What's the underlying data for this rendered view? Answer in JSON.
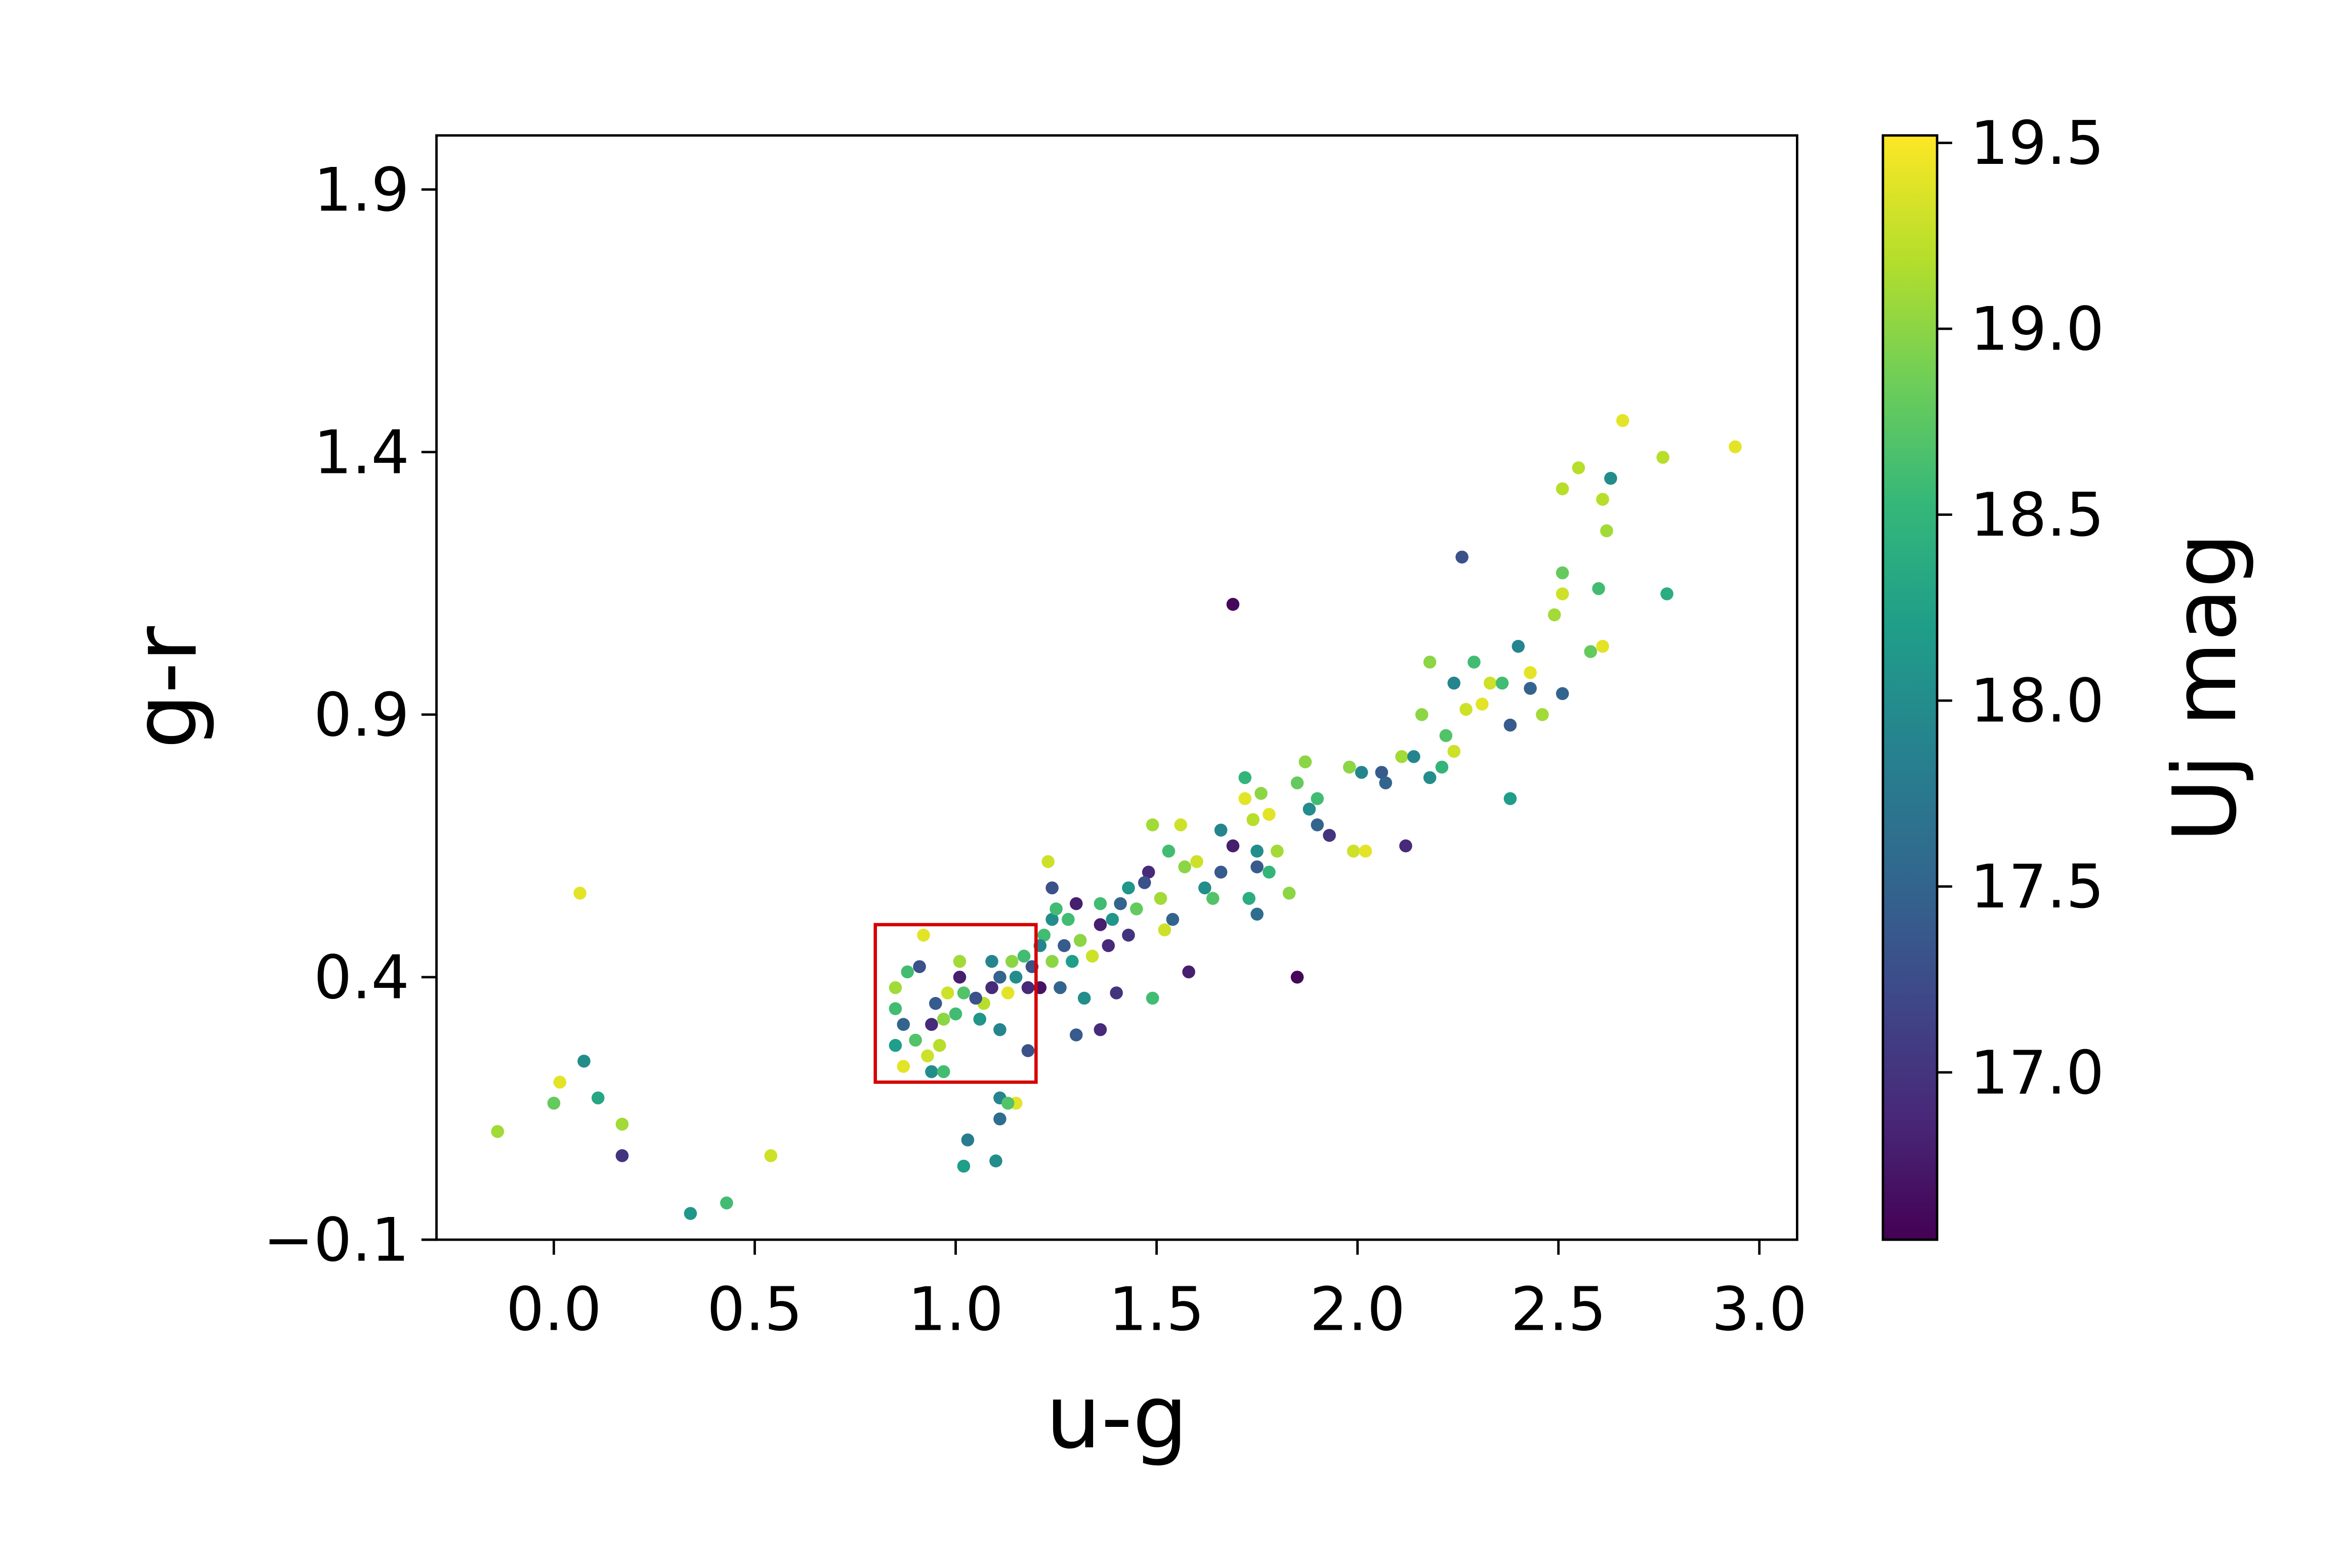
{
  "chart_data": {
    "type": "scatter",
    "x_label": "u-g",
    "y_label": "g-r",
    "colorbar_label": "Uj mag",
    "x": [
      -0.14,
      0.0,
      0.015,
      0.075,
      0.11,
      0.065,
      0.17,
      0.17,
      0.34,
      0.43,
      0.54,
      1.03,
      1.02,
      1.1,
      1.11,
      1.11,
      1.15,
      1.13,
      1.69,
      2.26,
      1.85,
      1.58,
      1.49,
      2.12,
      2.66,
      2.94,
      2.76,
      2.55,
      2.51,
      2.63,
      2.61,
      2.62,
      2.77,
      2.6,
      2.51,
      2.51,
      2.49,
      2.61,
      2.58,
      2.51,
      2.43,
      2.4,
      2.43,
      2.46,
      2.38,
      2.38,
      2.18,
      2.24,
      2.29,
      2.33,
      2.36,
      2.27,
      2.31,
      2.16,
      2.22,
      2.11,
      2.18,
      2.21,
      2.24,
      2.06,
      2.01,
      1.98,
      2.07,
      2.14,
      1.87,
      1.85,
      1.9,
      1.88,
      1.9,
      1.93,
      1.99,
      2.02,
      1.72,
      1.72,
      1.76,
      1.78,
      1.74,
      1.66,
      1.69,
      1.75,
      1.8,
      1.75,
      1.78,
      1.83,
      1.73,
      1.75,
      1.64,
      1.62,
      1.66,
      1.6,
      1.57,
      1.56,
      1.49,
      1.53,
      1.48,
      1.47,
      1.43,
      1.51,
      1.54,
      1.52,
      1.45,
      1.41,
      1.39,
      1.36,
      1.36,
      1.38,
      1.31,
      1.28,
      1.27,
      1.23,
      1.24,
      1.24,
      1.22,
      1.29,
      1.34,
      1.4,
      1.36,
      1.3,
      1.32,
      1.26,
      1.21,
      1.19,
      1.18,
      1.18,
      1.17,
      1.14,
      1.11,
      1.09,
      1.09,
      1.07,
      1.11,
      1.05,
      1.06,
      1.02,
      1.01,
      1.01,
      0.98,
      1.0,
      0.97,
      0.95,
      0.94,
      0.91,
      0.88,
      0.85,
      0.85,
      0.87,
      0.85,
      0.9,
      0.87,
      0.93,
      0.92,
      0.94,
      0.97,
      0.96,
      1.13,
      1.15,
      1.21,
      1.24,
      1.25,
      1.43,
      1.3
    ],
    "values": [
      0.106,
      0.16,
      0.2,
      0.24,
      0.17,
      0.56,
      0.12,
      0.06,
      -0.05,
      -0.03,
      0.06,
      0.09,
      0.04,
      0.05,
      0.13,
      0.17,
      0.16,
      0.16,
      1.11,
      1.2,
      0.4,
      0.41,
      0.36,
      0.65,
      1.46,
      1.41,
      1.39,
      1.37,
      1.33,
      1.35,
      1.31,
      1.25,
      1.13,
      1.14,
      1.17,
      1.13,
      1.09,
      1.03,
      1.02,
      0.94,
      0.95,
      1.03,
      0.98,
      0.9,
      0.88,
      0.74,
      1.0,
      0.96,
      1.0,
      0.96,
      0.96,
      0.91,
      0.92,
      0.9,
      0.86,
      0.82,
      0.78,
      0.8,
      0.83,
      0.79,
      0.79,
      0.8,
      0.77,
      0.82,
      0.81,
      0.77,
      0.74,
      0.72,
      0.69,
      0.67,
      0.64,
      0.64,
      0.78,
      0.74,
      0.75,
      0.71,
      0.7,
      0.68,
      0.65,
      0.64,
      0.64,
      0.61,
      0.6,
      0.56,
      0.55,
      0.52,
      0.55,
      0.57,
      0.6,
      0.62,
      0.61,
      0.69,
      0.69,
      0.64,
      0.6,
      0.58,
      0.57,
      0.55,
      0.51,
      0.49,
      0.53,
      0.54,
      0.51,
      0.54,
      0.5,
      0.46,
      0.47,
      0.51,
      0.46,
      0.62,
      0.57,
      0.51,
      0.48,
      0.43,
      0.44,
      0.37,
      0.3,
      0.29,
      0.36,
      0.38,
      0.38,
      0.42,
      0.38,
      0.26,
      0.44,
      0.43,
      0.4,
      0.43,
      0.38,
      0.35,
      0.3,
      0.36,
      0.32,
      0.37,
      0.4,
      0.43,
      0.37,
      0.33,
      0.32,
      0.35,
      0.31,
      0.42,
      0.41,
      0.38,
      0.34,
      0.31,
      0.27,
      0.28,
      0.23,
      0.25,
      0.48,
      0.22,
      0.22,
      0.27,
      0.37,
      0.4,
      0.46,
      0.43,
      0.53,
      0.48,
      0.54
    ],
    "color_values": [
      19.1,
      18.8,
      19.4,
      18.0,
      18.3,
      19.4,
      19.1,
      17.0,
      18.1,
      18.6,
      19.3,
      17.8,
      18.2,
      18.0,
      17.6,
      17.9,
      19.4,
      18.7,
      16.6,
      17.3,
      16.6,
      16.8,
      18.6,
      16.9,
      19.4,
      19.4,
      19.2,
      19.2,
      19.2,
      18.0,
      19.2,
      19.1,
      18.4,
      18.6,
      18.8,
      19.3,
      19.1,
      19.4,
      18.8,
      17.5,
      17.5,
      17.9,
      19.4,
      19.1,
      17.4,
      18.2,
      19.0,
      17.9,
      18.6,
      19.3,
      18.6,
      19.3,
      19.4,
      19.0,
      18.7,
      19.1,
      18.0,
      18.5,
      19.3,
      17.4,
      17.9,
      19.0,
      17.5,
      17.9,
      19.0,
      18.8,
      18.6,
      18.0,
      17.5,
      17.0,
      19.3,
      19.4,
      18.5,
      19.4,
      19.0,
      19.4,
      19.2,
      17.9,
      16.8,
      18.0,
      19.1,
      17.4,
      18.5,
      19.0,
      18.4,
      17.6,
      18.7,
      18.0,
      17.4,
      19.3,
      19.0,
      19.3,
      19.1,
      18.6,
      16.9,
      17.3,
      18.1,
      19.1,
      17.5,
      19.3,
      18.8,
      17.5,
      18.1,
      18.6,
      16.8,
      16.9,
      19.0,
      18.6,
      17.4,
      19.3,
      17.3,
      18.0,
      18.6,
      18.2,
      19.3,
      17.0,
      16.9,
      17.4,
      18.0,
      17.5,
      16.7,
      17.3,
      16.9,
      17.3,
      18.6,
      19.0,
      17.5,
      17.9,
      16.9,
      19.2,
      17.9,
      17.3,
      18.1,
      18.7,
      16.8,
      19.1,
      19.3,
      18.6,
      19.0,
      17.4,
      16.9,
      17.3,
      18.6,
      19.1,
      18.6,
      17.5,
      18.2,
      18.7,
      19.4,
      19.3,
      19.4,
      18.0,
      18.6,
      19.2,
      19.4,
      18.0,
      17.9,
      19.0,
      18.6,
      17.0,
      16.8
    ],
    "colormap": [
      "#440154",
      "#482878",
      "#3e4989",
      "#31688e",
      "#26828e",
      "#1f9e89",
      "#35b779",
      "#6ece58",
      "#b5de2b",
      "#fde725"
    ],
    "clim": [
      16.55,
      19.52
    ],
    "cticks": [
      {
        "value": 17.0,
        "label": "17.0"
      },
      17.5,
      {
        "value": 18.0,
        "label": "18.0"
      },
      18.5,
      {
        "value": 19.0,
        "label": "19.0"
      },
      19.5
    ],
    "xlim": [
      -0.292,
      3.094
    ],
    "ylim": [
      -0.1,
      2.003
    ],
    "xticks": [
      {
        "value": 0.0,
        "label": "0.0"
      },
      0.5,
      {
        "value": 1.0,
        "label": "1.0"
      },
      1.5,
      {
        "value": 2.0,
        "label": "2.0"
      },
      2.5,
      {
        "value": 3.0,
        "label": "3.0"
      }
    ],
    "yticks": [
      {
        "value": -0.1,
        "label": "−0.1"
      },
      0.4,
      0.9,
      1.4,
      1.9
    ],
    "highlight_box": {
      "x": [
        0.8,
        1.2
      ],
      "y": [
        0.2,
        0.5
      ],
      "color": "#d40000"
    }
  }
}
